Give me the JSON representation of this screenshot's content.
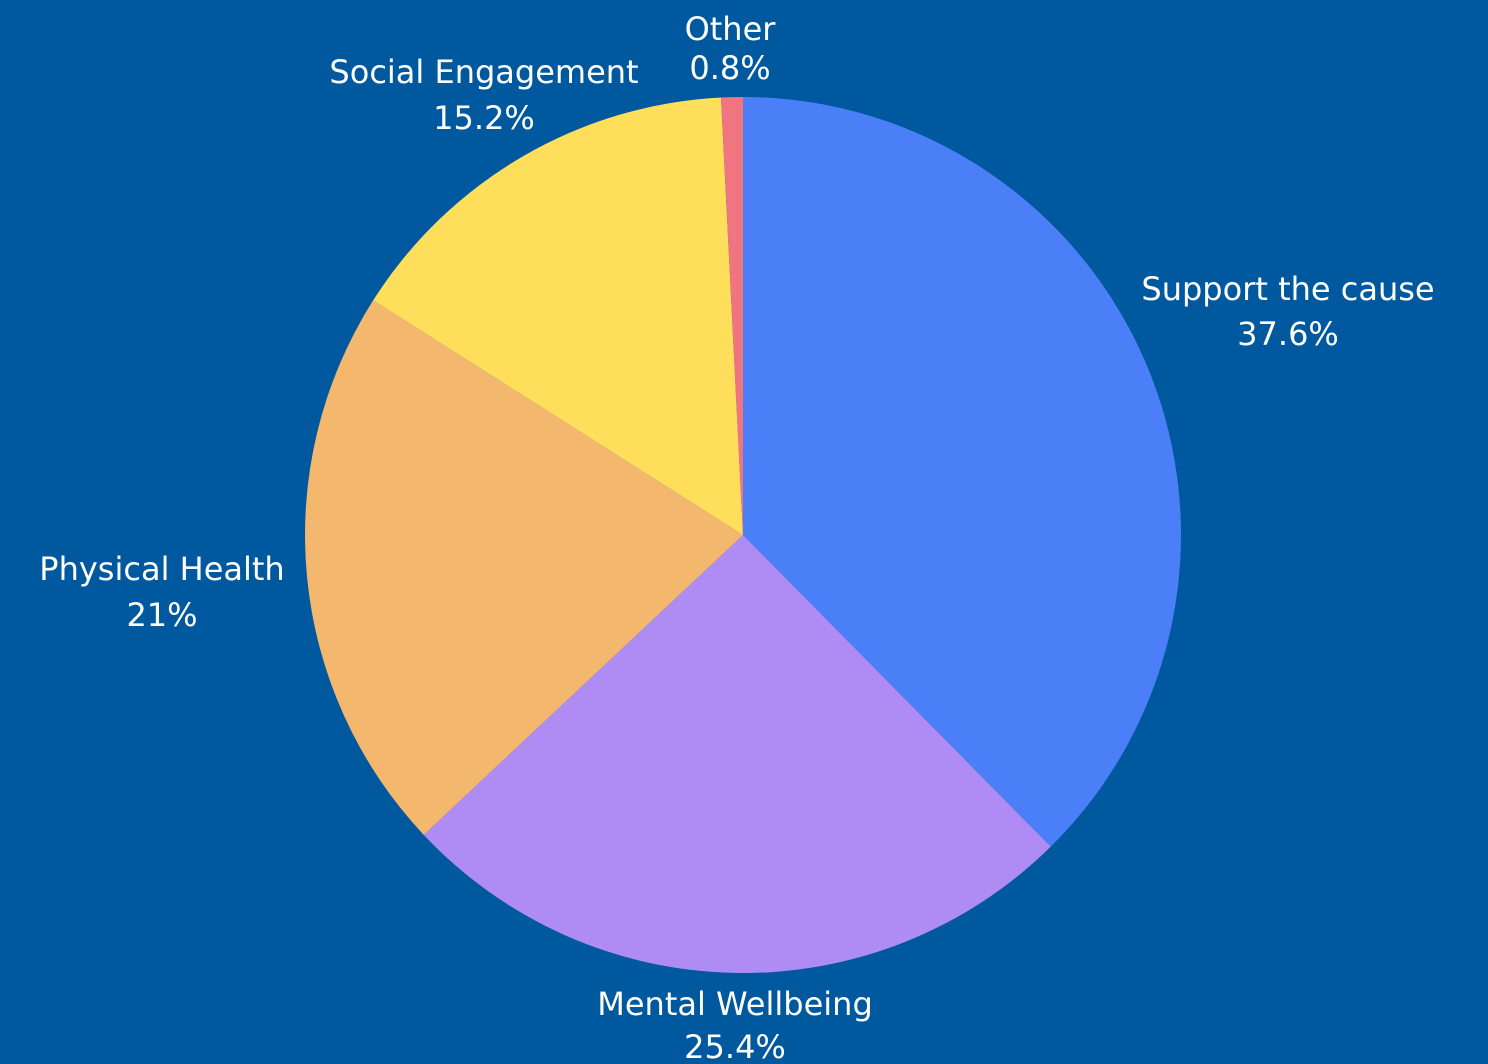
{
  "chart_data": {
    "type": "pie",
    "background_color": "#00589f",
    "slices": [
      {
        "label": "Support the cause",
        "value_label": "37.6%",
        "value": 37.6,
        "color": "#4b7ff8"
      },
      {
        "label": "Mental Wellbeing",
        "value_label": "25.4%",
        "value": 25.4,
        "color": "#af8cf4"
      },
      {
        "label": "Physical Health",
        "value_label": "21%",
        "value": 21.0,
        "color": "#f3b86d"
      },
      {
        "label": "Social Engagement",
        "value_label": "15.2%",
        "value": 15.2,
        "color": "#ffde5c"
      },
      {
        "label": "Other",
        "value_label": "0.8%",
        "value": 0.8,
        "color": "#f07580"
      }
    ]
  }
}
